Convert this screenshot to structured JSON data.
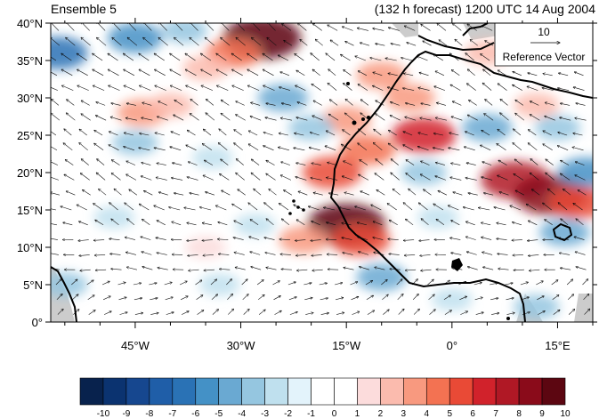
{
  "header": {
    "left_title": "Ensemble 5",
    "right_title": "(132 h forecast) 1200 UTC 14 Aug 2004"
  },
  "map": {
    "lat_range": [
      0,
      40
    ],
    "lon_range": [
      -57,
      20
    ],
    "lat_ticks": [
      {
        "value": 0,
        "label": "0°"
      },
      {
        "value": 5,
        "label": "5°N"
      },
      {
        "value": 10,
        "label": "10°N"
      },
      {
        "value": 15,
        "label": "15°N"
      },
      {
        "value": 20,
        "label": "20°N"
      },
      {
        "value": 25,
        "label": "25°N"
      },
      {
        "value": 30,
        "label": "30°N"
      },
      {
        "value": 35,
        "label": "35°N"
      },
      {
        "value": 40,
        "label": "40°N"
      }
    ],
    "lon_ticks": [
      {
        "value": -45,
        "label": "45°W"
      },
      {
        "value": -30,
        "label": "30°W"
      },
      {
        "value": -15,
        "label": "15°W"
      },
      {
        "value": 0,
        "label": "0°"
      },
      {
        "value": 15,
        "label": "15°E"
      }
    ],
    "reference_vector": {
      "value": "10",
      "label": "Reference Vector"
    }
  },
  "colorbar": {
    "labels": [
      "-10",
      "-9",
      "-8",
      "-7",
      "-6",
      "-5",
      "-4",
      "-3",
      "-2",
      "-1",
      "0",
      "1",
      "2",
      "3",
      "4",
      "5",
      "6",
      "7",
      "8",
      "9",
      "10"
    ],
    "colors": [
      "#08224d",
      "#0b3370",
      "#16478f",
      "#1f5ea8",
      "#2a72b5",
      "#4491c6",
      "#6aa9d2",
      "#95c6e0",
      "#bfe0ee",
      "#e3f3fb",
      "#ffffff",
      "#ffffff",
      "#fcdcdc",
      "#fbbbae",
      "#f8997f",
      "#f37252",
      "#e94a36",
      "#d1222b",
      "#b01825",
      "#8a0b1a",
      "#5c0611"
    ]
  },
  "anomaly_cells": [
    {
      "lon": -27,
      "lat": 38,
      "value": 10
    },
    {
      "lon": -31,
      "lat": 36,
      "value": 5
    },
    {
      "lon": -35,
      "lat": 34,
      "value": 3
    },
    {
      "lon": -44,
      "lat": 28,
      "value": 4
    },
    {
      "lon": -40,
      "lat": 29,
      "value": 3
    },
    {
      "lon": -10,
      "lat": 33,
      "value": 4
    },
    {
      "lon": -6,
      "lat": 30,
      "value": 4
    },
    {
      "lon": -15,
      "lat": 27,
      "value": 4
    },
    {
      "lon": -4,
      "lat": 25,
      "value": 7
    },
    {
      "lon": -12,
      "lat": 23,
      "value": 5
    },
    {
      "lon": -17,
      "lat": 20,
      "value": 6
    },
    {
      "lon": -15,
      "lat": 13,
      "value": 10
    },
    {
      "lon": -13,
      "lat": 11,
      "value": 6
    },
    {
      "lon": -21,
      "lat": 11,
      "value": 4
    },
    {
      "lon": -35,
      "lat": 10,
      "value": 2
    },
    {
      "lon": 9,
      "lat": 19,
      "value": 8
    },
    {
      "lon": 14,
      "lat": 17,
      "value": 9
    },
    {
      "lon": 18,
      "lat": 16,
      "value": 6
    },
    {
      "lon": 5,
      "lat": 36,
      "value": 3
    },
    {
      "lon": 12,
      "lat": 29,
      "value": 3
    },
    {
      "lon": -56,
      "lat": 36,
      "value": -6
    },
    {
      "lon": -45,
      "lat": 38,
      "value": -5
    },
    {
      "lon": -38,
      "lat": 39,
      "value": -3
    },
    {
      "lon": -24,
      "lat": 30,
      "value": -4
    },
    {
      "lon": -20,
      "lat": 26,
      "value": -3
    },
    {
      "lon": -34,
      "lat": 22,
      "value": -2
    },
    {
      "lon": -45,
      "lat": 24,
      "value": -3
    },
    {
      "lon": -28,
      "lat": 13,
      "value": -2
    },
    {
      "lon": -48,
      "lat": 14,
      "value": -2
    },
    {
      "lon": -55,
      "lat": 5,
      "value": -3
    },
    {
      "lon": -33,
      "lat": 5,
      "value": -2
    },
    {
      "lon": -10,
      "lat": 6,
      "value": -4
    },
    {
      "lon": -4,
      "lat": 20,
      "value": -3
    },
    {
      "lon": 5,
      "lat": 26,
      "value": -4
    },
    {
      "lon": 15,
      "lat": 26,
      "value": -3
    },
    {
      "lon": -2,
      "lat": 14,
      "value": -2
    },
    {
      "lon": 12,
      "lat": 2,
      "value": -3
    },
    {
      "lon": 19,
      "lat": 20,
      "value": -5
    },
    {
      "lon": 16,
      "lat": 12,
      "value": -4
    },
    {
      "lon": 0,
      "lat": 3,
      "value": -2
    }
  ]
}
